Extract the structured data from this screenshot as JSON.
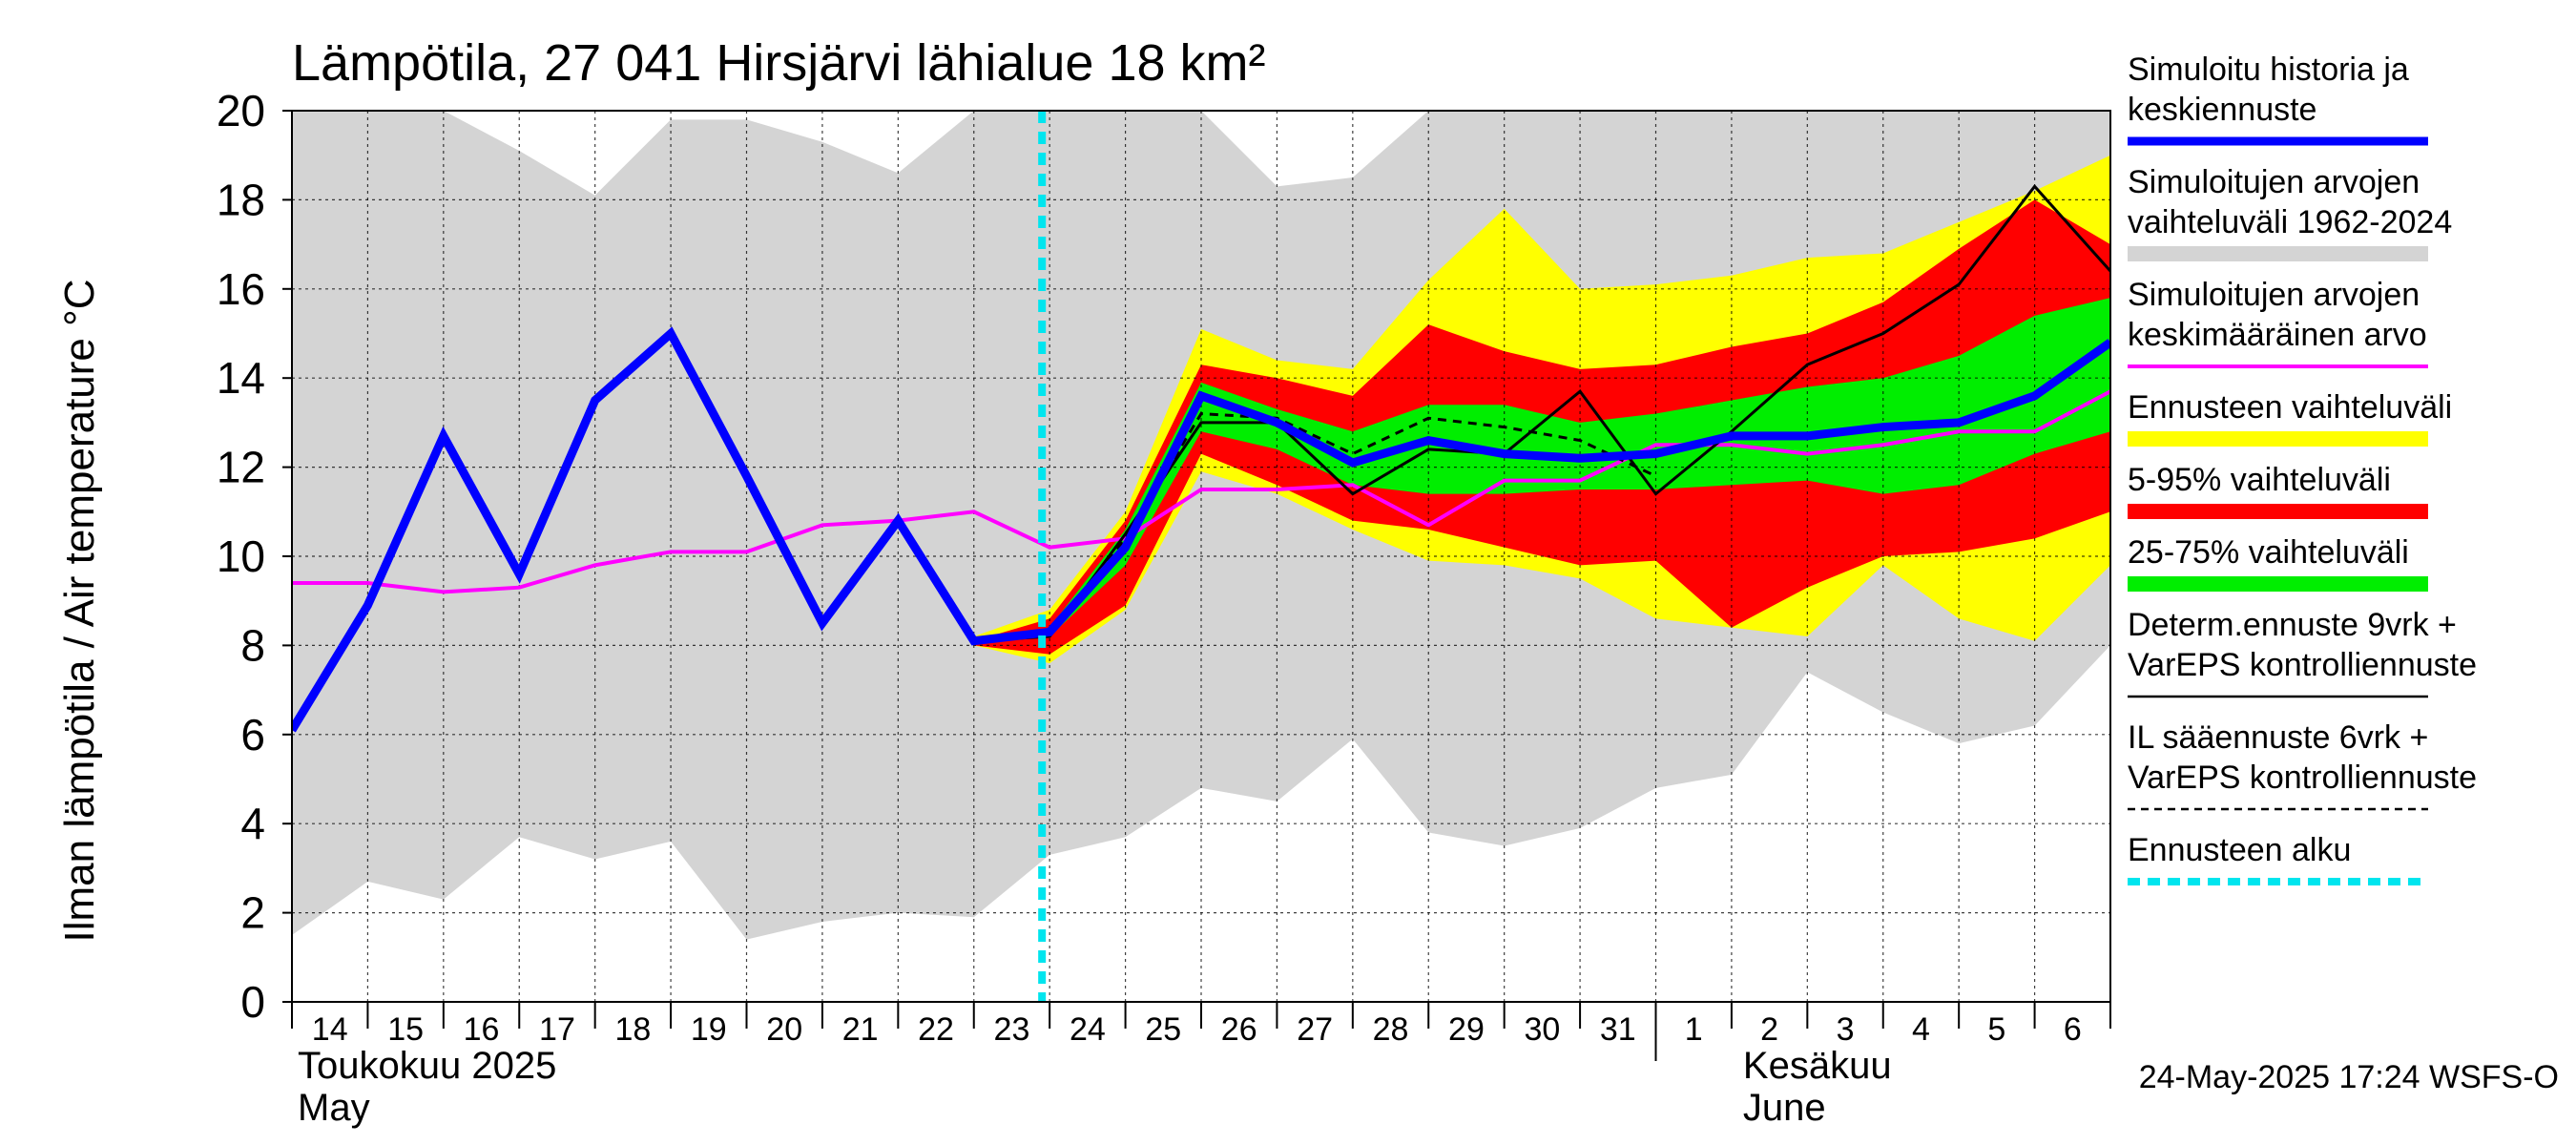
{
  "chart_data": {
    "type": "area",
    "title": "Lämpötila, 27 041 Hirsjärvi lähialue 18 km²",
    "ylabel": "Ilman lämpötila / Air temperature   °C",
    "ylim": [
      0,
      20
    ],
    "yticks": [
      0,
      2,
      4,
      6,
      8,
      10,
      12,
      14,
      16,
      18,
      20
    ],
    "xticks": [
      "14",
      "15",
      "16",
      "17",
      "18",
      "19",
      "20",
      "21",
      "22",
      "23",
      "24",
      "25",
      "26",
      "27",
      "28",
      "29",
      "30",
      "31",
      "1",
      "2",
      "3",
      "4",
      "5",
      "6"
    ],
    "month_labels": [
      {
        "line1": "Toukokuu  2025",
        "line2": "May",
        "at_day": 0
      },
      {
        "line1": "Kesäkuu",
        "line2": "June",
        "at_day": 19
      }
    ],
    "forecast_start_day": 10,
    "days": [
      0,
      1,
      2,
      3,
      4,
      5,
      6,
      7,
      8,
      9,
      10,
      11,
      12,
      13,
      14,
      15,
      16,
      17,
      18,
      19,
      20,
      21,
      22,
      23,
      24
    ],
    "series": [
      {
        "name": "Simuloitujen arvojen vaihteluväli 1962-2024",
        "role": "range-history",
        "color": "#d4d4d4",
        "upper": [
          20,
          20,
          20,
          19.1,
          18.1,
          19.8,
          19.8,
          19.3,
          18.6,
          20,
          20,
          20,
          20,
          18.3,
          18.5,
          20,
          20,
          20,
          20,
          20,
          20,
          20,
          20,
          20,
          20
        ],
        "lower": [
          1.5,
          2.7,
          2.3,
          3.7,
          3.2,
          3.6,
          1.4,
          1.8,
          2.0,
          1.9,
          3.3,
          3.7,
          4.8,
          4.5,
          5.9,
          3.8,
          3.5,
          3.9,
          4.8,
          5.1,
          7.4,
          6.5,
          5.8,
          6.2,
          8.0
        ]
      },
      {
        "name": "Ennusteen vaihteluväli",
        "role": "range-forecast",
        "color": "#ffff00",
        "x": [
          9,
          10,
          11,
          12,
          13,
          14,
          15,
          16,
          17,
          18,
          19,
          20,
          21,
          22,
          23,
          24
        ],
        "upper": [
          8.2,
          8.8,
          11.0,
          15.1,
          14.4,
          14.2,
          16.2,
          17.8,
          16.0,
          16.1,
          16.3,
          16.7,
          16.8,
          17.5,
          18.2,
          19.0
        ],
        "lower": [
          8.0,
          7.6,
          8.8,
          11.9,
          11.4,
          10.6,
          9.9,
          9.8,
          9.5,
          8.6,
          8.4,
          8.2,
          9.8,
          8.6,
          8.1,
          9.8
        ]
      },
      {
        "name": "5-95% vaihteluväli",
        "role": "range-5-95",
        "color": "#ff0000",
        "x": [
          9,
          10,
          11,
          12,
          13,
          14,
          15,
          16,
          17,
          18,
          19,
          20,
          21,
          22,
          23,
          24
        ],
        "upper": [
          8.1,
          8.6,
          10.8,
          14.3,
          14.0,
          13.6,
          15.2,
          14.6,
          14.2,
          14.3,
          14.7,
          15.0,
          15.7,
          16.9,
          18.0,
          17.0
        ],
        "lower": [
          8.0,
          7.8,
          8.9,
          12.3,
          11.6,
          10.8,
          10.6,
          10.2,
          9.8,
          9.9,
          8.4,
          9.3,
          10.0,
          10.1,
          10.4,
          11.0
        ]
      },
      {
        "name": "25-75% vaihteluväli",
        "role": "range-25-75",
        "color": "#00ee00",
        "x": [
          9,
          10,
          11,
          12,
          13,
          14,
          15,
          16,
          17,
          18,
          19,
          20,
          21,
          22,
          23,
          24
        ],
        "upper": [
          8.1,
          8.4,
          10.6,
          13.9,
          13.3,
          12.8,
          13.4,
          13.4,
          13.0,
          13.2,
          13.5,
          13.8,
          14.0,
          14.5,
          15.4,
          15.8
        ],
        "lower": [
          8.1,
          8.2,
          9.8,
          12.8,
          12.4,
          11.6,
          11.4,
          11.4,
          11.5,
          11.5,
          11.6,
          11.7,
          11.4,
          11.6,
          12.3,
          12.8
        ]
      },
      {
        "name": "Simuloitujen arvojen keskimääräinen arvo",
        "role": "line-mean",
        "color": "#ff00ff",
        "y": [
          9.4,
          9.4,
          9.2,
          9.3,
          9.8,
          10.1,
          10.1,
          10.7,
          10.8,
          11.0,
          10.2,
          10.4,
          11.5,
          11.5,
          11.6,
          10.7,
          11.7,
          11.7,
          12.5,
          12.5,
          12.3,
          12.5,
          12.8,
          12.8,
          13.7
        ]
      },
      {
        "name": "IL sääennuste 6vrk + VarEPS kontrolliennuste",
        "role": "line-il-dashed",
        "color": "#000000",
        "x": [
          9,
          10,
          11,
          12,
          13,
          14,
          15,
          16,
          17,
          18
        ],
        "y": [
          8.1,
          8.3,
          10.4,
          13.2,
          13.1,
          12.3,
          13.1,
          12.9,
          12.6,
          11.8
        ]
      },
      {
        "name": "Determ.ennuste 9vrk + VarEPS kontrolliennuste",
        "role": "line-determ",
        "color": "#000000",
        "x": [
          8,
          9,
          10,
          11,
          12,
          13,
          14,
          15,
          16,
          17,
          18,
          19,
          20,
          21,
          22,
          23,
          24
        ],
        "y": [
          10.9,
          8.1,
          8.2,
          10.5,
          13.0,
          13.0,
          11.4,
          12.4,
          12.3,
          13.7,
          11.4,
          12.8,
          14.3,
          15.0,
          16.1,
          18.3,
          16.4
        ]
      },
      {
        "name": "Simuloitu historia ja keskiennuste",
        "role": "line-main",
        "color": "#0000ff",
        "y": [
          6.1,
          8.9,
          12.7,
          9.6,
          13.5,
          15.0,
          11.8,
          8.5,
          10.8,
          8.1,
          8.3,
          10.2,
          13.6,
          13.0,
          12.1,
          12.6,
          12.3,
          12.2,
          12.3,
          12.7,
          12.7,
          12.9,
          13.0,
          13.6,
          14.8
        ]
      }
    ],
    "legend": [
      {
        "text": [
          "Simuloitu historia ja",
          "keskiennuste"
        ],
        "color": "#0000ff",
        "style": "thick"
      },
      {
        "text": [
          "Simuloitujen arvojen",
          "vaihteluväli 1962-2024"
        ],
        "color": "#d4d4d4",
        "style": "band"
      },
      {
        "text": [
          "Simuloitujen arvojen",
          "keskimääräinen arvo"
        ],
        "color": "#ff00ff",
        "style": "thin"
      },
      {
        "text": [
          "Ennusteen vaihteluväli"
        ],
        "color": "#ffff00",
        "style": "band"
      },
      {
        "text": [
          "5-95% vaihteluväli"
        ],
        "color": "#ff0000",
        "style": "band"
      },
      {
        "text": [
          "25-75% vaihteluväli"
        ],
        "color": "#00ee00",
        "style": "band"
      },
      {
        "text": [
          "Determ.ennuste 9vrk +",
          "VarEPS kontrolliennuste"
        ],
        "color": "#000000",
        "style": "line"
      },
      {
        "text": [
          "IL sääennuste 6vrk  +",
          "  VarEPS kontrolliennuste"
        ],
        "color": "#000000",
        "style": "dashed"
      },
      {
        "text": [
          "Ennusteen alku"
        ],
        "color": "#00e5ee",
        "style": "cyan-dashed"
      }
    ],
    "footer": "24-May-2025 17:24 WSFS-O"
  }
}
